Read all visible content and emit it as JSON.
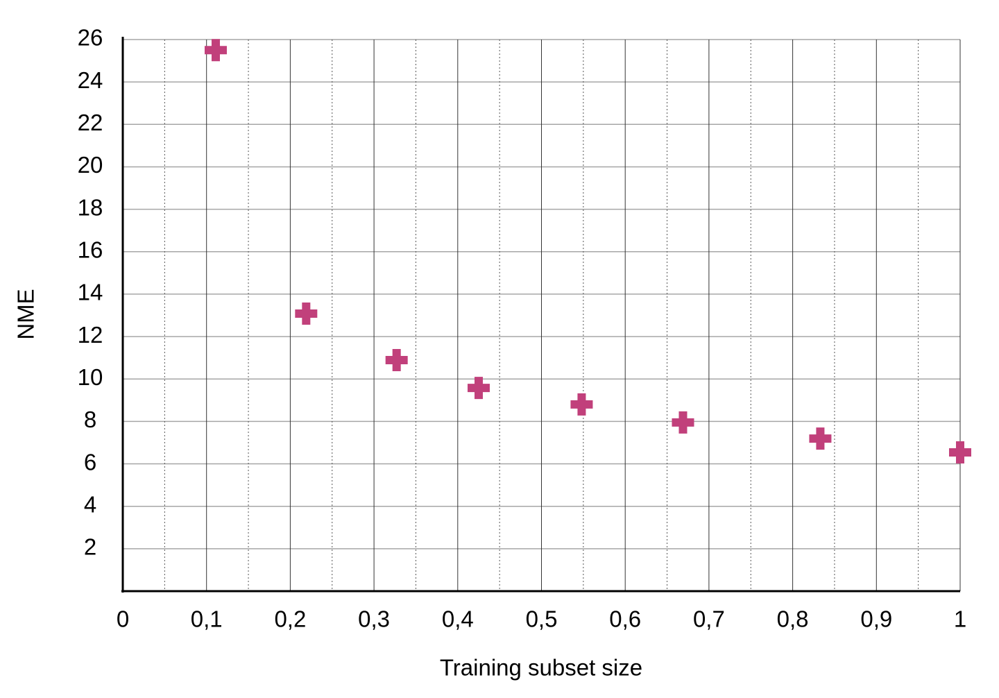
{
  "chart_data": {
    "type": "scatter",
    "x_label": "Training subset size",
    "y_label": "NME",
    "series": [
      {
        "name": "NME",
        "color": "#c1407b",
        "x": [
          0.111,
          0.219,
          0.327,
          0.425,
          0.548,
          0.669,
          0.833,
          1.0
        ],
        "values": [
          25.5,
          13.08,
          10.89,
          9.58,
          8.8,
          7.95,
          7.19,
          6.54
        ]
      }
    ],
    "xlim": [
      0,
      1
    ],
    "ylim": [
      0,
      26
    ],
    "xticks": [
      0,
      {
        "value": 0.1,
        "label": "0,1"
      },
      {
        "value": 0.2,
        "label": "0,2"
      },
      {
        "value": 0.3,
        "label": "0,3"
      },
      {
        "value": 0.4,
        "label": "0,4"
      },
      {
        "value": 0.5,
        "label": "0,5"
      },
      {
        "value": 0.6,
        "label": "0,6"
      },
      {
        "value": 0.7,
        "label": "0,7"
      },
      {
        "value": 0.8,
        "label": "0,8"
      },
      {
        "value": 0.9,
        "label": "0,9"
      },
      1
    ],
    "x_minor_ticks": [
      0.05,
      0.15,
      0.25,
      0.35,
      0.45,
      0.55,
      0.65,
      0.75,
      0.85,
      0.95
    ],
    "yticks": [
      2,
      4,
      6,
      8,
      10,
      12,
      14,
      16,
      18,
      20,
      22,
      24,
      26
    ],
    "grid": true
  }
}
